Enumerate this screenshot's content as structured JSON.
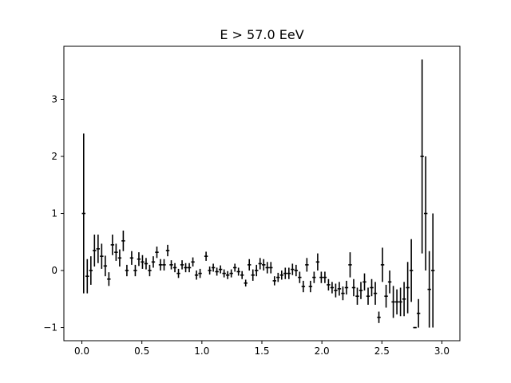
{
  "chart_data": {
    "type": "scatter",
    "title": "E > 57.0 EeV",
    "xlabel": "",
    "ylabel": "",
    "xlim": [
      -0.15,
      3.15
    ],
    "ylim": [
      -1.23,
      3.93
    ],
    "grid": false,
    "legend": "none",
    "marker": "errorbar",
    "color": "#000000",
    "x_ticks": [
      0.0,
      0.5,
      1.0,
      1.5,
      2.0,
      2.5,
      3.0
    ],
    "x_tick_labels": [
      "0.0",
      "0.5",
      "1.0",
      "1.5",
      "2.0",
      "2.5",
      "3.0"
    ],
    "y_ticks": [
      -1,
      0,
      1,
      2,
      3
    ],
    "y_tick_labels": [
      "−1",
      "0",
      "1",
      "2",
      "3"
    ],
    "points": [
      {
        "x": 0.015,
        "y": 1.0,
        "err": 1.4
      },
      {
        "x": 0.045,
        "y": -0.1,
        "err": 0.3
      },
      {
        "x": 0.075,
        "y": 0.0,
        "err": 0.25
      },
      {
        "x": 0.105,
        "y": 0.35,
        "err": 0.28
      },
      {
        "x": 0.135,
        "y": 0.38,
        "err": 0.25
      },
      {
        "x": 0.165,
        "y": 0.25,
        "err": 0.22
      },
      {
        "x": 0.195,
        "y": 0.08,
        "err": 0.18
      },
      {
        "x": 0.225,
        "y": -0.15,
        "err": 0.12
      },
      {
        "x": 0.255,
        "y": 0.45,
        "err": 0.18
      },
      {
        "x": 0.285,
        "y": 0.32,
        "err": 0.15
      },
      {
        "x": 0.315,
        "y": 0.22,
        "err": 0.15
      },
      {
        "x": 0.345,
        "y": 0.52,
        "err": 0.18
      },
      {
        "x": 0.375,
        "y": 0.0,
        "err": 0.1
      },
      {
        "x": 0.415,
        "y": 0.22,
        "err": 0.12
      },
      {
        "x": 0.445,
        "y": 0.0,
        "err": 0.1
      },
      {
        "x": 0.475,
        "y": 0.2,
        "err": 0.12
      },
      {
        "x": 0.505,
        "y": 0.15,
        "err": 0.12
      },
      {
        "x": 0.535,
        "y": 0.12,
        "err": 0.1
      },
      {
        "x": 0.565,
        "y": 0.0,
        "err": 0.1
      },
      {
        "x": 0.595,
        "y": 0.15,
        "err": 0.1
      },
      {
        "x": 0.625,
        "y": 0.32,
        "err": 0.1
      },
      {
        "x": 0.655,
        "y": 0.1,
        "err": 0.1
      },
      {
        "x": 0.685,
        "y": 0.1,
        "err": 0.1
      },
      {
        "x": 0.715,
        "y": 0.35,
        "err": 0.1
      },
      {
        "x": 0.745,
        "y": 0.1,
        "err": 0.08
      },
      {
        "x": 0.775,
        "y": 0.05,
        "err": 0.08
      },
      {
        "x": 0.805,
        "y": -0.05,
        "err": 0.08
      },
      {
        "x": 0.835,
        "y": 0.1,
        "err": 0.08
      },
      {
        "x": 0.865,
        "y": 0.05,
        "err": 0.08
      },
      {
        "x": 0.895,
        "y": 0.05,
        "err": 0.08
      },
      {
        "x": 0.925,
        "y": 0.15,
        "err": 0.08
      },
      {
        "x": 0.955,
        "y": -0.08,
        "err": 0.08
      },
      {
        "x": 0.985,
        "y": -0.05,
        "err": 0.08
      },
      {
        "x": 1.035,
        "y": 0.25,
        "err": 0.08
      },
      {
        "x": 1.065,
        "y": 0.0,
        "err": 0.07
      },
      {
        "x": 1.095,
        "y": 0.05,
        "err": 0.07
      },
      {
        "x": 1.125,
        "y": -0.02,
        "err": 0.07
      },
      {
        "x": 1.155,
        "y": 0.02,
        "err": 0.07
      },
      {
        "x": 1.185,
        "y": -0.05,
        "err": 0.07
      },
      {
        "x": 1.215,
        "y": -0.08,
        "err": 0.07
      },
      {
        "x": 1.245,
        "y": -0.05,
        "err": 0.07
      },
      {
        "x": 1.275,
        "y": 0.05,
        "err": 0.07
      },
      {
        "x": 1.305,
        "y": -0.02,
        "err": 0.07
      },
      {
        "x": 1.335,
        "y": -0.08,
        "err": 0.07
      },
      {
        "x": 1.365,
        "y": -0.22,
        "err": 0.06
      },
      {
        "x": 1.395,
        "y": 0.1,
        "err": 0.1
      },
      {
        "x": 1.425,
        "y": -0.08,
        "err": 0.1
      },
      {
        "x": 1.455,
        "y": 0.0,
        "err": 0.1
      },
      {
        "x": 1.485,
        "y": 0.12,
        "err": 0.1
      },
      {
        "x": 1.515,
        "y": 0.1,
        "err": 0.1
      },
      {
        "x": 1.545,
        "y": 0.05,
        "err": 0.1
      },
      {
        "x": 1.575,
        "y": 0.05,
        "err": 0.1
      },
      {
        "x": 1.605,
        "y": -0.18,
        "err": 0.08
      },
      {
        "x": 1.635,
        "y": -0.12,
        "err": 0.08
      },
      {
        "x": 1.665,
        "y": -0.08,
        "err": 0.08
      },
      {
        "x": 1.695,
        "y": -0.05,
        "err": 0.1
      },
      {
        "x": 1.725,
        "y": -0.05,
        "err": 0.1
      },
      {
        "x": 1.755,
        "y": 0.02,
        "err": 0.1
      },
      {
        "x": 1.785,
        "y": 0.0,
        "err": 0.1
      },
      {
        "x": 1.815,
        "y": -0.12,
        "err": 0.1
      },
      {
        "x": 1.845,
        "y": -0.28,
        "err": 0.1
      },
      {
        "x": 1.875,
        "y": 0.1,
        "err": 0.12
      },
      {
        "x": 1.905,
        "y": -0.28,
        "err": 0.1
      },
      {
        "x": 1.935,
        "y": -0.12,
        "err": 0.1
      },
      {
        "x": 1.965,
        "y": 0.15,
        "err": 0.15
      },
      {
        "x": 1.995,
        "y": -0.12,
        "err": 0.1
      },
      {
        "x": 2.025,
        "y": -0.12,
        "err": 0.1
      },
      {
        "x": 2.055,
        "y": -0.25,
        "err": 0.1
      },
      {
        "x": 2.085,
        "y": -0.3,
        "err": 0.1
      },
      {
        "x": 2.115,
        "y": -0.35,
        "err": 0.12
      },
      {
        "x": 2.145,
        "y": -0.32,
        "err": 0.12
      },
      {
        "x": 2.175,
        "y": -0.4,
        "err": 0.12
      },
      {
        "x": 2.205,
        "y": -0.3,
        "err": 0.12
      },
      {
        "x": 2.235,
        "y": 0.1,
        "err": 0.22
      },
      {
        "x": 2.265,
        "y": -0.3,
        "err": 0.15
      },
      {
        "x": 2.295,
        "y": -0.45,
        "err": 0.15
      },
      {
        "x": 2.325,
        "y": -0.35,
        "err": 0.15
      },
      {
        "x": 2.355,
        "y": -0.2,
        "err": 0.15
      },
      {
        "x": 2.385,
        "y": -0.45,
        "err": 0.15
      },
      {
        "x": 2.415,
        "y": -0.3,
        "err": 0.15
      },
      {
        "x": 2.445,
        "y": -0.4,
        "err": 0.2
      },
      {
        "x": 2.475,
        "y": -0.82,
        "err": 0.1
      },
      {
        "x": 2.505,
        "y": 0.1,
        "err": 0.3
      },
      {
        "x": 2.535,
        "y": -0.45,
        "err": 0.2
      },
      {
        "x": 2.565,
        "y": -0.2,
        "err": 0.2
      },
      {
        "x": 2.595,
        "y": -0.55,
        "err": 0.28
      },
      {
        "x": 2.625,
        "y": -0.55,
        "err": 0.22
      },
      {
        "x": 2.655,
        "y": -0.55,
        "err": 0.25
      },
      {
        "x": 2.685,
        "y": -0.5,
        "err": 0.3
      },
      {
        "x": 2.715,
        "y": -0.3,
        "err": 0.45
      },
      {
        "x": 2.745,
        "y": 0.0,
        "err": 0.55
      },
      {
        "x": 2.775,
        "y": -1.0,
        "err": 0.01
      },
      {
        "x": 2.805,
        "y": -0.75,
        "err": 0.25
      },
      {
        "x": 2.835,
        "y": 2.0,
        "err": 1.7
      },
      {
        "x": 2.865,
        "y": 1.0,
        "err": 1.0
      },
      {
        "x": 2.895,
        "y": -0.33,
        "err": 0.67
      },
      {
        "x": 2.925,
        "y": 0.0,
        "err": 1.0
      }
    ]
  }
}
